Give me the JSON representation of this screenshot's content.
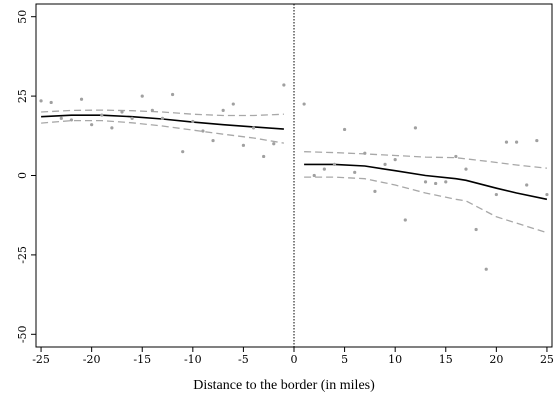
{
  "chart_data": {
    "type": "scatter",
    "xlabel": "Distance to the border (in miles)",
    "ylabel": "",
    "xlim": [
      -25.5,
      25.5
    ],
    "ylim": [
      -54,
      54
    ],
    "xticks": [
      -25,
      -20,
      -15,
      -10,
      -5,
      0,
      5,
      10,
      15,
      20,
      25
    ],
    "yticks": [
      -50,
      -25,
      0,
      25,
      50
    ],
    "grid": false,
    "cutoff": 0,
    "colors": {
      "points": "#a0a0a0",
      "fit": "#000000",
      "ci": "#a8a8a8",
      "cutoff": "#000000"
    },
    "series": [
      {
        "role": "scatter",
        "points": [
          [
            -25,
            23.5
          ],
          [
            -24,
            23
          ],
          [
            -23,
            18
          ],
          [
            -22,
            17.5
          ],
          [
            -21,
            24
          ],
          [
            -20,
            16
          ],
          [
            -19,
            19
          ],
          [
            -18,
            15
          ],
          [
            -17,
            20
          ],
          [
            -16,
            18
          ],
          [
            -15,
            25
          ],
          [
            -14,
            20.5
          ],
          [
            -13,
            18
          ],
          [
            -12,
            25.5
          ],
          [
            -11,
            7.5
          ],
          [
            -10,
            17
          ],
          [
            -9,
            14
          ],
          [
            -8,
            11
          ],
          [
            -7,
            20.5
          ],
          [
            -6,
            22.5
          ],
          [
            -5,
            9.5
          ],
          [
            -4,
            15
          ],
          [
            -3,
            6
          ],
          [
            -2,
            10
          ],
          [
            -1,
            28.5
          ],
          [
            1,
            22.5
          ],
          [
            2,
            0
          ],
          [
            3,
            2
          ],
          [
            4,
            3.5
          ],
          [
            5,
            14.5
          ],
          [
            6,
            1
          ],
          [
            7,
            7
          ],
          [
            8,
            -5
          ],
          [
            9,
            3.5
          ],
          [
            10,
            5
          ],
          [
            11,
            -14
          ],
          [
            12,
            15
          ],
          [
            13,
            -2
          ],
          [
            14,
            -2.5
          ],
          [
            15,
            -2
          ],
          [
            16,
            6
          ],
          [
            17,
            2
          ],
          [
            18,
            -17
          ],
          [
            19,
            -29.5
          ],
          [
            20,
            -6
          ],
          [
            21,
            10.5
          ],
          [
            22,
            10.5
          ],
          [
            23,
            -3
          ],
          [
            24,
            11
          ],
          [
            25,
            -6
          ]
        ]
      },
      {
        "role": "fit-left",
        "points": [
          [
            -25,
            18.5
          ],
          [
            -22,
            19
          ],
          [
            -19,
            19
          ],
          [
            -16,
            18.5
          ],
          [
            -13,
            17.8
          ],
          [
            -10,
            16.8
          ],
          [
            -7,
            16
          ],
          [
            -4,
            15.3
          ],
          [
            -1,
            14.6
          ]
        ]
      },
      {
        "role": "ci-upper-left",
        "points": [
          [
            -25,
            20
          ],
          [
            -22,
            20.5
          ],
          [
            -19,
            20.6
          ],
          [
            -16,
            20.4
          ],
          [
            -13,
            20
          ],
          [
            -10,
            19.3
          ],
          [
            -7,
            18.9
          ],
          [
            -4,
            18.9
          ],
          [
            -1,
            19.3
          ]
        ]
      },
      {
        "role": "ci-lower-left",
        "points": [
          [
            -25,
            16.5
          ],
          [
            -22,
            17.3
          ],
          [
            -19,
            17.3
          ],
          [
            -16,
            16.6
          ],
          [
            -13,
            15.6
          ],
          [
            -10,
            14.3
          ],
          [
            -7,
            13
          ],
          [
            -4,
            11.8
          ],
          [
            -1,
            10.2
          ]
        ]
      },
      {
        "role": "fit-right",
        "points": [
          [
            1,
            3.5
          ],
          [
            4,
            3.5
          ],
          [
            7,
            3
          ],
          [
            10,
            1.5
          ],
          [
            13,
            0
          ],
          [
            16,
            -1
          ],
          [
            17,
            -1.5
          ],
          [
            20,
            -4
          ],
          [
            22,
            -5.5
          ],
          [
            25,
            -7.5
          ]
        ]
      },
      {
        "role": "ci-upper-right",
        "points": [
          [
            1,
            7.5
          ],
          [
            4,
            7.2
          ],
          [
            7,
            6.8
          ],
          [
            10,
            6.3
          ],
          [
            13,
            5.8
          ],
          [
            16,
            5.6
          ],
          [
            19,
            4.5
          ],
          [
            22,
            3.3
          ],
          [
            25,
            2.3
          ]
        ]
      },
      {
        "role": "ci-lower-right",
        "points": [
          [
            1,
            -0.5
          ],
          [
            4,
            -0.5
          ],
          [
            7,
            -1
          ],
          [
            10,
            -3
          ],
          [
            13,
            -5.5
          ],
          [
            16,
            -7.5
          ],
          [
            17,
            -8
          ],
          [
            20,
            -13
          ],
          [
            23,
            -16
          ],
          [
            25,
            -18
          ]
        ]
      }
    ]
  }
}
